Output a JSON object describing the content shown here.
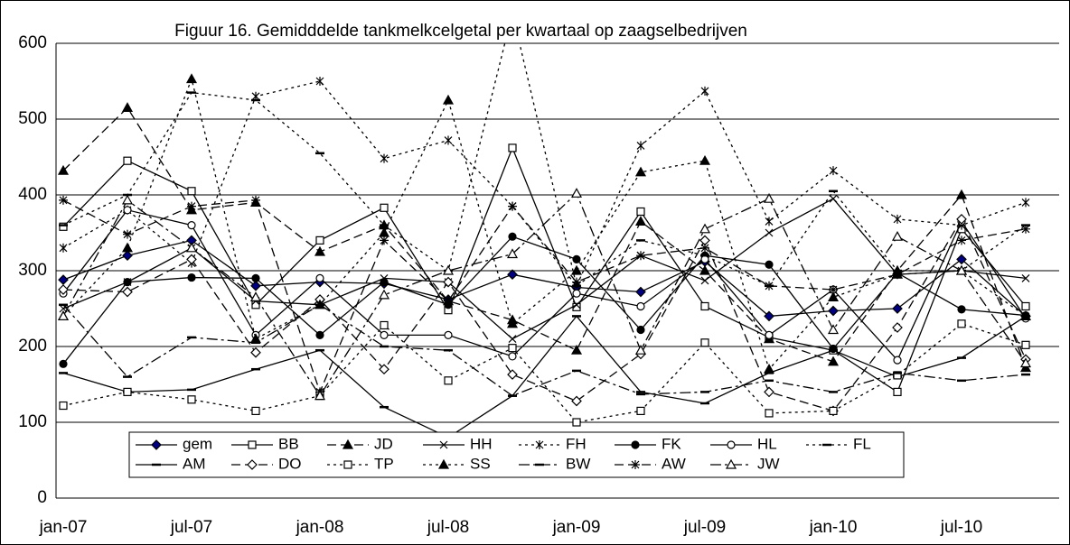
{
  "chart_data": {
    "type": "line",
    "title": "Figuur 16. Gemidddelde tankmelkcelgetal per kwartaal op zaagselbedrijven",
    "categories": [
      "jan-07",
      null,
      "jul-07",
      null,
      "jan-08",
      null,
      "jul-08",
      null,
      "jan-09",
      null,
      "jul-09",
      null,
      "jan-10",
      null,
      "jul-10",
      null
    ],
    "ylim": [
      0,
      600
    ],
    "yticks": [
      0,
      100,
      200,
      300,
      400,
      500,
      600
    ],
    "grid": true,
    "series": [
      {
        "name": "gem",
        "color": "#000000",
        "marker": "diamond-filled",
        "marker_color": "#000080",
        "dash": "solid",
        "values": [
          288,
          320,
          340,
          280,
          285,
          283,
          262,
          295,
          278,
          272,
          312,
          240,
          247,
          250,
          315,
          240
        ]
      },
      {
        "name": "BB",
        "color": "#000000",
        "marker": "square-open",
        "dash": "solid",
        "values": [
          358,
          445,
          405,
          255,
          340,
          383,
          248,
          462,
          252,
          378,
          253,
          212,
          195,
          140,
          355,
          253
        ]
      },
      {
        "name": "JD",
        "color": "#000000",
        "marker": "triangle-filled",
        "dash": "dashed",
        "values": [
          432,
          515,
          380,
          390,
          325,
          360,
          260,
          235,
          195,
          365,
          300,
          210,
          180,
          300,
          400,
          172
        ]
      },
      {
        "name": "HH",
        "color": "#000000",
        "marker": "x",
        "dash": "solid",
        "values": [
          250,
          285,
          330,
          260,
          255,
          290,
          285,
          210,
          255,
          320,
          287,
          350,
          395,
          295,
          300,
          290
        ]
      },
      {
        "name": "FH",
        "color": "#000000",
        "marker": "asterisk",
        "dash": "dotted",
        "values": [
          330,
          380,
          310,
          530,
          550,
          448,
          472,
          385,
          280,
          465,
          537,
          365,
          432,
          368,
          360,
          390
        ]
      },
      {
        "name": "FK",
        "color": "#000000",
        "marker": "circle-filled",
        "dash": "solid",
        "values": [
          177,
          285,
          291,
          290,
          215,
          285,
          255,
          345,
          315,
          222,
          320,
          308,
          197,
          297,
          249,
          241
        ]
      },
      {
        "name": "HL",
        "color": "#000000",
        "marker": "circle-open",
        "dash": "solid",
        "values": [
          270,
          380,
          360,
          215,
          290,
          215,
          215,
          187,
          270,
          253,
          315,
          215,
          275,
          182,
          365,
          237
        ]
      },
      {
        "name": "FL",
        "color": "#000000",
        "marker": "dash",
        "dash": "dotted",
        "values": [
          360,
          400,
          535,
          525,
          455,
          360,
          300,
          640,
          280,
          340,
          320,
          280,
          405,
          300,
          300,
          360
        ]
      },
      {
        "name": "AM",
        "color": "#000000",
        "marker": "dash",
        "dash": "solid",
        "values": [
          165,
          140,
          143,
          170,
          195,
          120,
          80,
          135,
          240,
          140,
          125,
          165,
          195,
          160,
          185,
          240
        ]
      },
      {
        "name": "DO",
        "color": "#000000",
        "marker": "diamond-open",
        "dash": "dashed",
        "values": [
          275,
          272,
          315,
          192,
          262,
          170,
          285,
          163,
          128,
          190,
          340,
          140,
          115,
          225,
          368,
          183
        ]
      },
      {
        "name": "TP",
        "color": "#000000",
        "marker": "square-open",
        "dash": "dotted",
        "values": [
          122,
          140,
          130,
          115,
          135,
          228,
          155,
          198,
          100,
          115,
          205,
          112,
          115,
          162,
          230,
          202
        ]
      },
      {
        "name": "SS",
        "color": "#000000",
        "marker": "triangle-filled",
        "dash": "dotted",
        "values": [
          240,
          330,
          553,
          210,
          255,
          350,
          525,
          230,
          300,
          430,
          445,
          170,
          265,
          295,
          300,
          240
        ]
      },
      {
        "name": "BW",
        "color": "#000000",
        "marker": "dash",
        "dash": "dashdot",
        "values": [
          255,
          160,
          212,
          205,
          255,
          200,
          195,
          135,
          168,
          137,
          140,
          155,
          140,
          165,
          155,
          163
        ]
      },
      {
        "name": "AW",
        "color": "#000000",
        "marker": "star",
        "dash": "dashed",
        "values": [
          393,
          348,
          385,
          393,
          140,
          340,
          260,
          385,
          285,
          320,
          330,
          280,
          275,
          295,
          340,
          355
        ]
      },
      {
        "name": "JW",
        "color": "#000000",
        "marker": "triangle-open",
        "dash": "dashdot",
        "values": [
          240,
          393,
          330,
          265,
          135,
          268,
          300,
          322,
          402,
          195,
          355,
          395,
          222,
          345,
          300,
          178
        ]
      }
    ]
  }
}
